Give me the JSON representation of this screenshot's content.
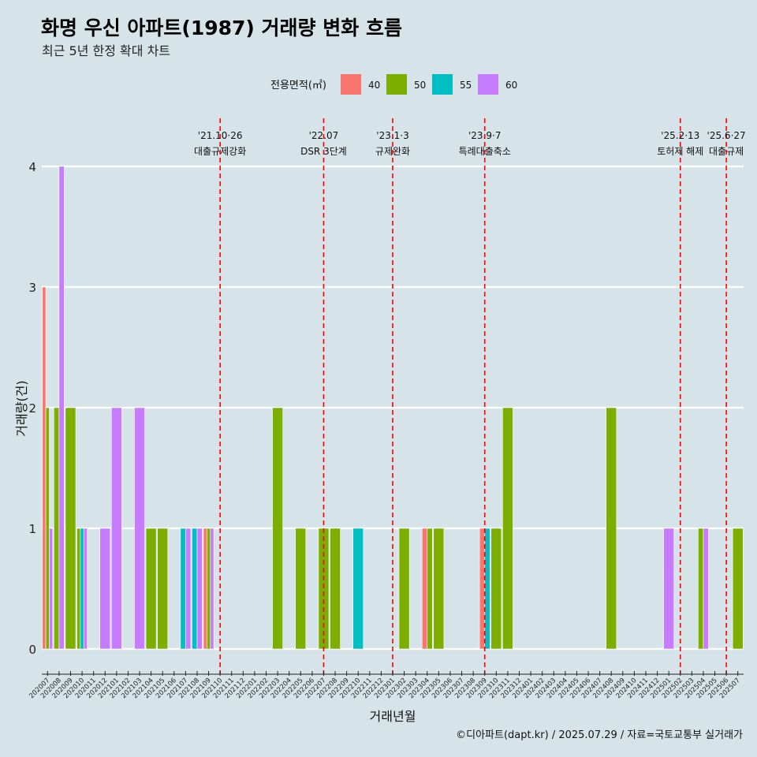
{
  "chart_data": {
    "type": "bar",
    "title": "화명 우신 아파트(1987) 거래량 변화 흐름",
    "subtitle": "최근 5년 한정 확대 차트",
    "xlabel": "거래년월",
    "ylabel": "거래량(건)",
    "ylim": [
      0,
      4
    ],
    "yticks": [
      0,
      1,
      2,
      3,
      4
    ],
    "grid": true,
    "legend_position": "top",
    "legend_title": "전용면적(㎡)",
    "caption": "©디아파트(dapt.kr) / 2025.07.29 / 자료=국토교통부 실거래가",
    "categories": [
      "202007",
      "202008",
      "202009",
      "202010",
      "202011",
      "202012",
      "202101",
      "202102",
      "202103",
      "202104",
      "202105",
      "202106",
      "202107",
      "202108",
      "202109",
      "202110",
      "202111",
      "202112",
      "202201",
      "202202",
      "202203",
      "202204",
      "202205",
      "202206",
      "202207",
      "202208",
      "202209",
      "202210",
      "202211",
      "202212",
      "202301",
      "202302",
      "202303",
      "202304",
      "202305",
      "202306",
      "202307",
      "202308",
      "202309",
      "202310",
      "202311",
      "202312",
      "202401",
      "202402",
      "202403",
      "202404",
      "202405",
      "202406",
      "202407",
      "202408",
      "202409",
      "202410",
      "202411",
      "202412",
      "202501",
      "202502",
      "202503",
      "202504",
      "202505",
      "202506",
      "202507"
    ],
    "series": [
      {
        "name": "40",
        "color": "#f8766d",
        "values": [
          3,
          0,
          0,
          0,
          0,
          0,
          0,
          0,
          0,
          0,
          0,
          0,
          0,
          0,
          1,
          0,
          0,
          0,
          0,
          0,
          0,
          0,
          0,
          0,
          0,
          0,
          0,
          0,
          0,
          0,
          0,
          0,
          0,
          1,
          0,
          0,
          0,
          0,
          1,
          0,
          0,
          0,
          0,
          0,
          0,
          0,
          0,
          0,
          0,
          0,
          0,
          0,
          0,
          0,
          0,
          0,
          0,
          0,
          0,
          0,
          0
        ]
      },
      {
        "name": "50",
        "color": "#7cae00",
        "values": [
          2,
          2,
          2,
          1,
          0,
          0,
          0,
          0,
          0,
          1,
          1,
          0,
          0,
          0,
          1,
          0,
          0,
          0,
          0,
          0,
          2,
          0,
          1,
          0,
          1,
          1,
          0,
          0,
          0,
          0,
          0,
          1,
          0,
          1,
          1,
          0,
          0,
          0,
          0,
          1,
          2,
          0,
          0,
          0,
          0,
          0,
          0,
          0,
          0,
          2,
          0,
          0,
          0,
          0,
          0,
          0,
          0,
          1,
          0,
          0,
          1
        ]
      },
      {
        "name": "55",
        "color": "#00bfc4",
        "values": [
          0,
          0,
          0,
          1,
          0,
          0,
          0,
          0,
          0,
          0,
          0,
          0,
          1,
          1,
          0,
          0,
          0,
          0,
          0,
          0,
          0,
          0,
          0,
          0,
          0,
          0,
          0,
          1,
          0,
          0,
          0,
          0,
          0,
          0,
          0,
          0,
          0,
          0,
          1,
          0,
          0,
          0,
          0,
          0,
          0,
          0,
          0,
          0,
          0,
          0,
          0,
          0,
          0,
          0,
          0,
          0,
          0,
          0,
          0,
          0,
          0
        ]
      },
      {
        "name": "60",
        "color": "#c77cff",
        "values": [
          1,
          4,
          0,
          1,
          0,
          1,
          2,
          0,
          2,
          0,
          0,
          0,
          1,
          1,
          1,
          0,
          0,
          0,
          0,
          0,
          0,
          0,
          0,
          0,
          0,
          0,
          0,
          0,
          0,
          0,
          0,
          0,
          0,
          0,
          0,
          0,
          0,
          0,
          0,
          0,
          0,
          0,
          0,
          0,
          0,
          0,
          0,
          0,
          0,
          0,
          0,
          0,
          0,
          0,
          1,
          0,
          0,
          1,
          0,
          0,
          0
        ]
      }
    ],
    "events": [
      {
        "date": "202110",
        "label": "'21.10·26",
        "sublabel": "대출규제강화"
      },
      {
        "date": "202207",
        "label": "'22.07",
        "sublabel": "DSR 3단계"
      },
      {
        "date": "202301",
        "label": "'23.1·3",
        "sublabel": "규제완화"
      },
      {
        "date": "202309",
        "label": "'23.9·7",
        "sublabel": "특례대출축소"
      },
      {
        "date": "202502",
        "label": "'25.2·13",
        "sublabel": "토허제 해제"
      },
      {
        "date": "202506",
        "label": "'25.6·27",
        "sublabel": "대출규제"
      }
    ]
  },
  "colors": {
    "background": "#d6e4ea",
    "gridline": "#ffffff",
    "event_line": "#ff0000"
  }
}
